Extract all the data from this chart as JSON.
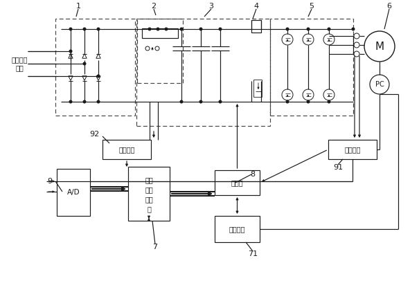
{
  "bg": "#ffffff",
  "lc": "#1a1a1a",
  "source_text": "三相交流\n电源",
  "motor_text": "M",
  "encoder_text": "PC",
  "iso_amp_text": "隔离放大",
  "volt_det_text": "电压检测",
  "ad_text": "A/D",
  "dsp_line1": "数字",
  "dsp_line2": "信号",
  "dsp_line3": "处理",
  "dsp_line4": "器",
  "gate_text": "门降列",
  "hmi_text": "人机界面",
  "labels": [
    "1",
    "2",
    "3",
    "4",
    "5",
    "6",
    "7",
    "71",
    "8",
    "9",
    "91",
    "92"
  ]
}
